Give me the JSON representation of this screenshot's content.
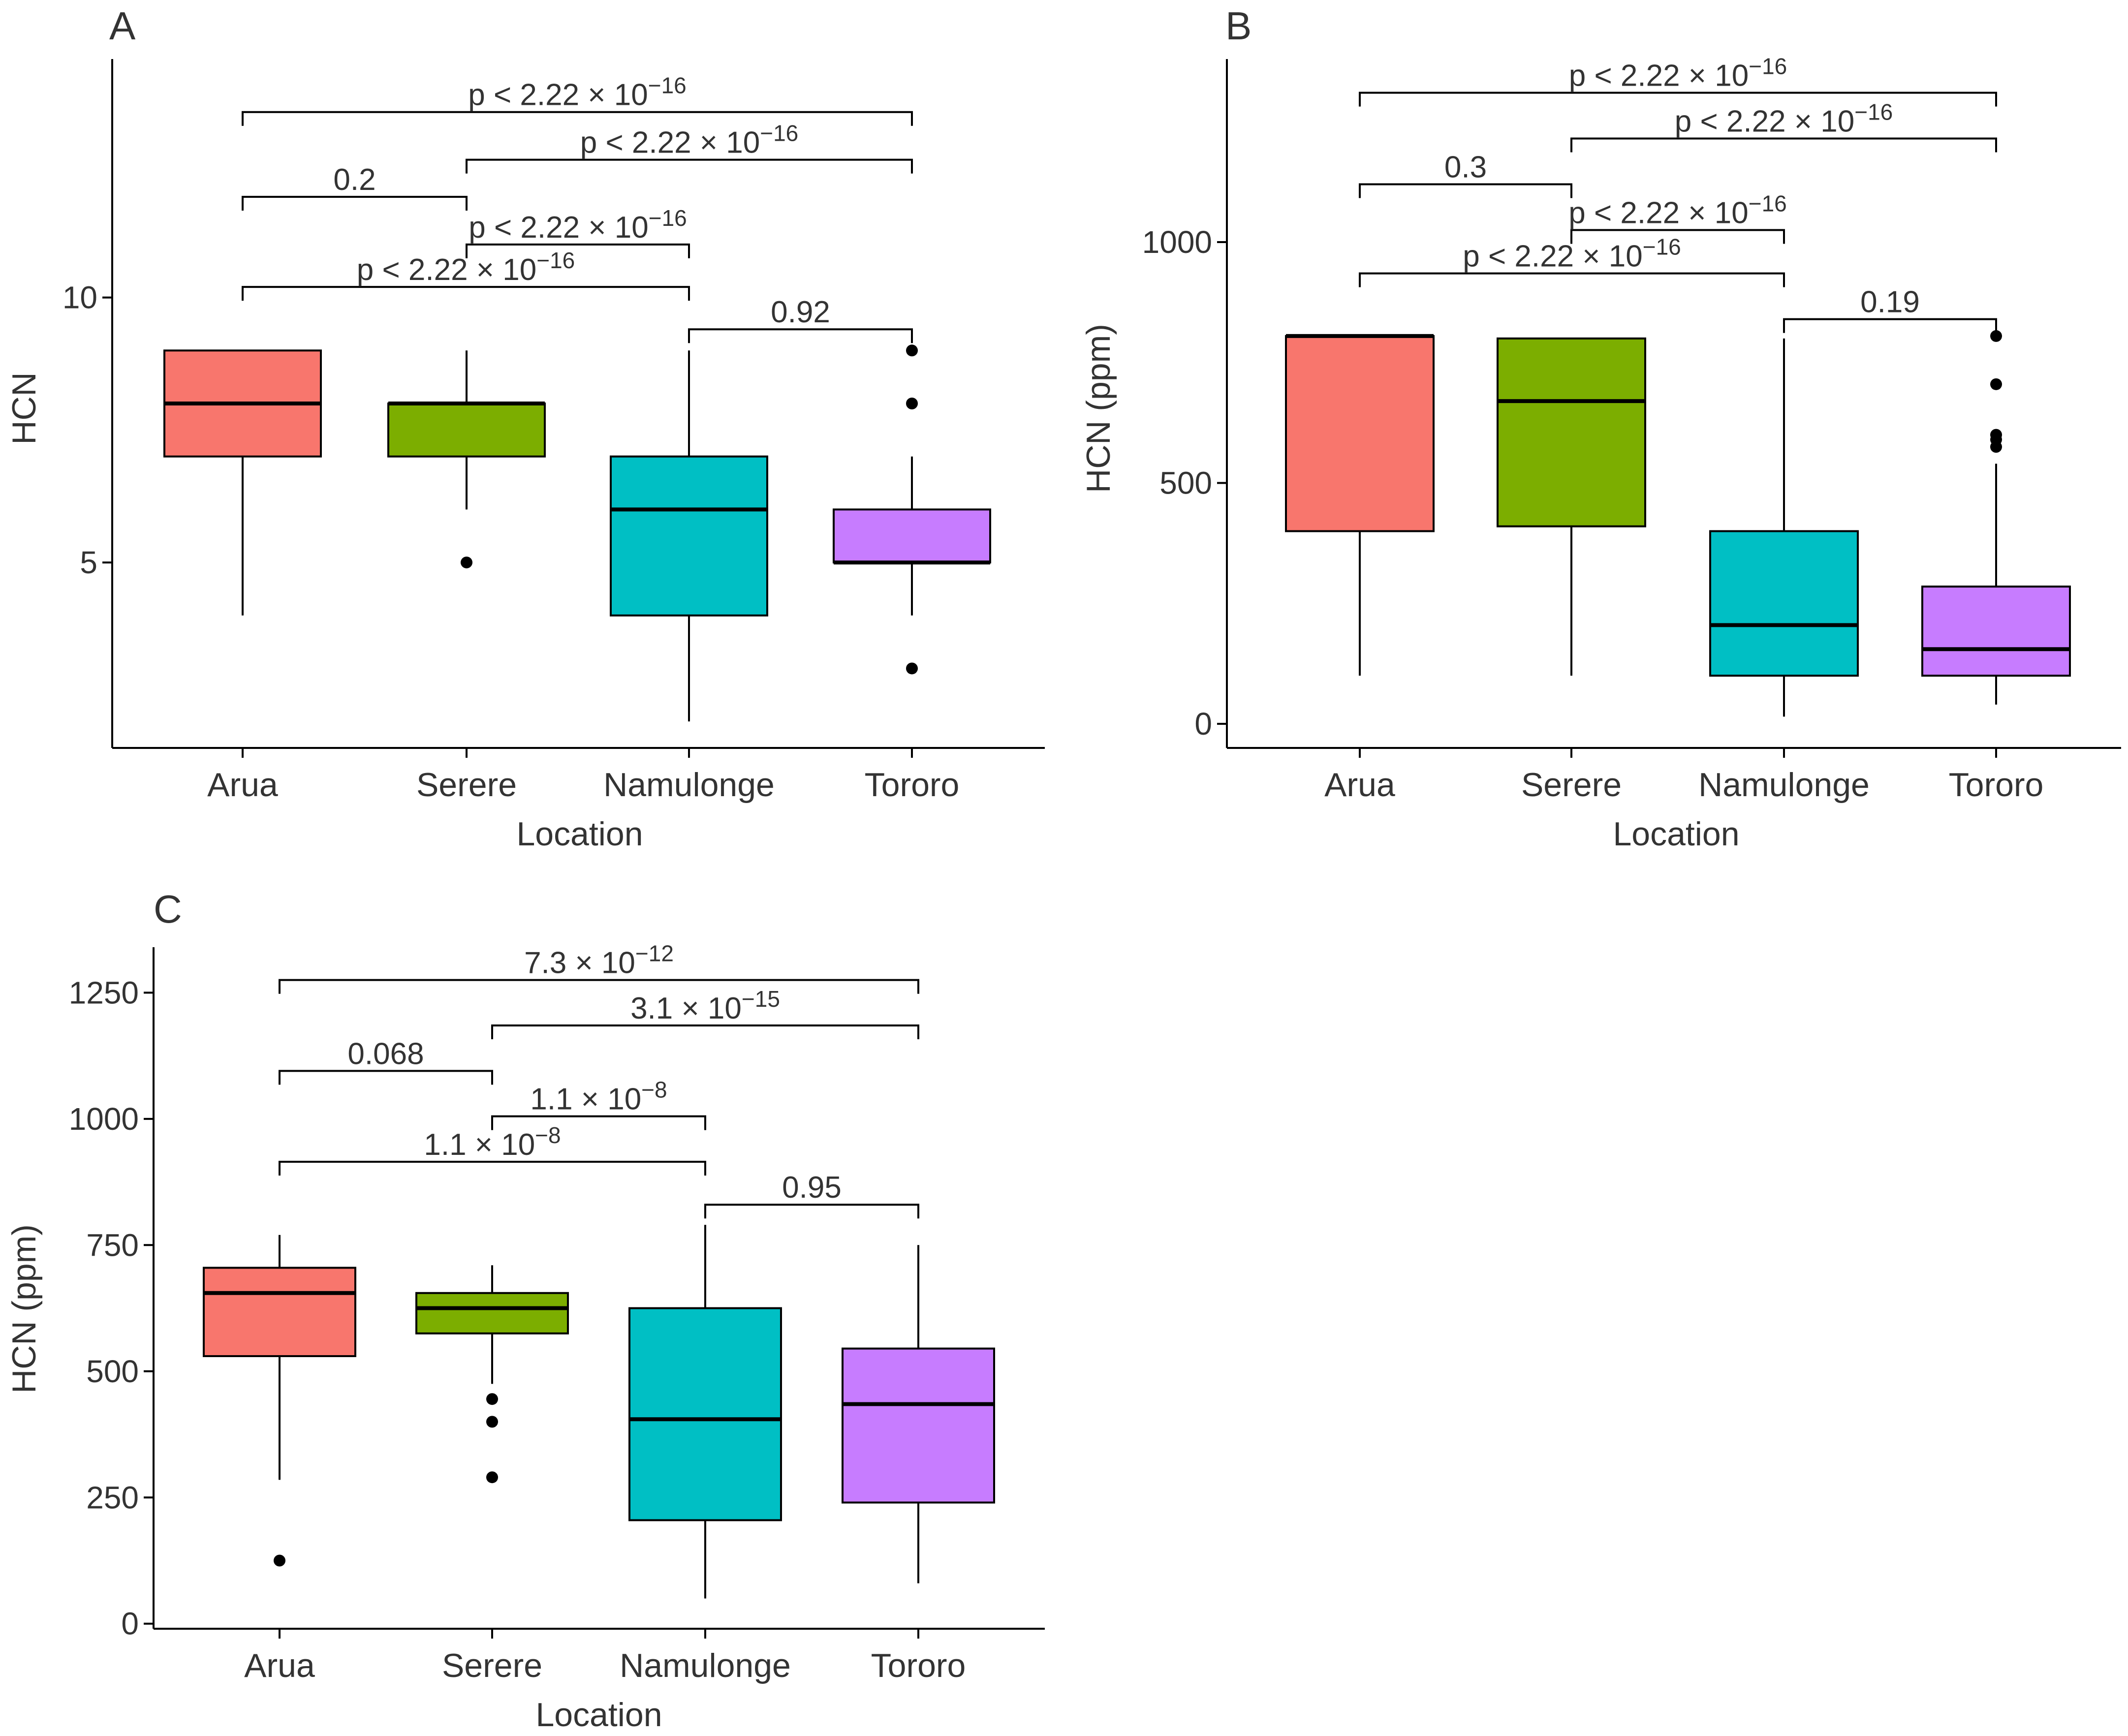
{
  "figure": {
    "panels": [
      "A",
      "B",
      "C"
    ]
  },
  "colors": {
    "Arua": "#F8766D",
    "Serere": "#7CAE00",
    "Namulonge": "#00BFC4",
    "Tororo": "#C77CFF",
    "line": "#000000",
    "text": "#333333"
  },
  "chart_data": [
    {
      "panel": "A",
      "type": "boxplot",
      "xlabel": "Location",
      "ylabel": "HCN",
      "categories": [
        "Arua",
        "Serere",
        "Namulonge",
        "Tororo"
      ],
      "ylim": [
        1.5,
        14.5
      ],
      "yticks": [
        5,
        10
      ],
      "ytick_labels": [
        "5",
        "10"
      ],
      "boxes": [
        {
          "name": "Arua",
          "lower_whisker": 4,
          "q1": 7,
          "median": 8,
          "q3": 9,
          "upper_whisker": 9,
          "outliers": []
        },
        {
          "name": "Serere",
          "lower_whisker": 6,
          "q1": 7,
          "median": 8,
          "q3": 8,
          "upper_whisker": 9,
          "outliers": [
            5
          ]
        },
        {
          "name": "Namulonge",
          "lower_whisker": 2,
          "q1": 4,
          "median": 6,
          "q3": 7,
          "upper_whisker": 9,
          "outliers": []
        },
        {
          "name": "Tororo",
          "lower_whisker": 4,
          "q1": 5,
          "median": 5,
          "q3": 6,
          "upper_whisker": 7,
          "outliers": [
            3,
            8,
            9
          ]
        }
      ],
      "comparisons": [
        {
          "from": 0,
          "to": 3,
          "level": 13.5,
          "label": "p < 2.22 × 10",
          "exp": "−16"
        },
        {
          "from": 1,
          "to": 3,
          "level": 12.6,
          "label": "p < 2.22 × 10",
          "exp": "−16"
        },
        {
          "from": 0,
          "to": 1,
          "level": 11.9,
          "label": "0.2",
          "exp": ""
        },
        {
          "from": 1,
          "to": 2,
          "level": 11.0,
          "label": "p < 2.22 × 10",
          "exp": "−16"
        },
        {
          "from": 0,
          "to": 2,
          "level": 10.2,
          "label": "p < 2.22 × 10",
          "exp": "−16"
        },
        {
          "from": 2,
          "to": 3,
          "level": 9.4,
          "label": "0.92",
          "exp": ""
        }
      ]
    },
    {
      "panel": "B",
      "type": "boxplot",
      "xlabel": "Location",
      "ylabel": "HCN (ppm)",
      "categories": [
        "Arua",
        "Serere",
        "Namulonge",
        "Tororo"
      ],
      "ylim": [
        -50,
        1380
      ],
      "yticks": [
        0,
        500,
        1000
      ],
      "ytick_labels": [
        "0",
        "500",
        "1000"
      ],
      "boxes": [
        {
          "name": "Arua",
          "lower_whisker": 100,
          "q1": 400,
          "median": 805,
          "q3": 805,
          "upper_whisker": 805,
          "outliers": []
        },
        {
          "name": "Serere",
          "lower_whisker": 100,
          "q1": 410,
          "median": 670,
          "q3": 800,
          "upper_whisker": 800,
          "outliers": []
        },
        {
          "name": "Namulonge",
          "lower_whisker": 15,
          "q1": 100,
          "median": 205,
          "q3": 400,
          "upper_whisker": 800,
          "outliers": []
        },
        {
          "name": "Tororo",
          "lower_whisker": 40,
          "q1": 100,
          "median": 155,
          "q3": 285,
          "upper_whisker": 540,
          "outliers": [
            575,
            590,
            600,
            705,
            805
          ]
        }
      ],
      "comparisons": [
        {
          "from": 0,
          "to": 3,
          "level": 1310,
          "label": "p < 2.22 × 10",
          "exp": "−16"
        },
        {
          "from": 1,
          "to": 3,
          "level": 1215,
          "label": "p < 2.22 × 10",
          "exp": "−16"
        },
        {
          "from": 0,
          "to": 1,
          "level": 1120,
          "label": "0.3",
          "exp": ""
        },
        {
          "from": 1,
          "to": 2,
          "level": 1025,
          "label": "p < 2.22 × 10",
          "exp": "−16"
        },
        {
          "from": 0,
          "to": 2,
          "level": 935,
          "label": "p < 2.22 × 10",
          "exp": "−16"
        },
        {
          "from": 2,
          "to": 3,
          "level": 840,
          "label": "0.19",
          "exp": ""
        }
      ]
    },
    {
      "panel": "C",
      "type": "boxplot",
      "xlabel": "Location",
      "ylabel": "HCN (ppm)",
      "categories": [
        "Arua",
        "Serere",
        "Namulonge",
        "Tororo"
      ],
      "ylim": [
        -10,
        1340
      ],
      "yticks": [
        0,
        250,
        500,
        750,
        1000,
        1250
      ],
      "ytick_labels": [
        "0",
        "250",
        "500",
        "750",
        "1000",
        "1250"
      ],
      "boxes": [
        {
          "name": "Arua",
          "lower_whisker": 285,
          "q1": 530,
          "median": 655,
          "q3": 705,
          "upper_whisker": 770,
          "outliers": [
            125
          ]
        },
        {
          "name": "Serere",
          "lower_whisker": 475,
          "q1": 575,
          "median": 625,
          "q3": 655,
          "upper_whisker": 710,
          "outliers": [
            290,
            400,
            445
          ]
        },
        {
          "name": "Namulonge",
          "lower_whisker": 50,
          "q1": 205,
          "median": 405,
          "q3": 625,
          "upper_whisker": 790,
          "outliers": []
        },
        {
          "name": "Tororo",
          "lower_whisker": 80,
          "q1": 240,
          "median": 435,
          "q3": 545,
          "upper_whisker": 750,
          "outliers": []
        }
      ],
      "comparisons": [
        {
          "from": 0,
          "to": 3,
          "level": 1275,
          "label": "7.3 × 10",
          "exp": "−12"
        },
        {
          "from": 1,
          "to": 3,
          "level": 1185,
          "label": "3.1 × 10",
          "exp": "−15"
        },
        {
          "from": 0,
          "to": 1,
          "level": 1095,
          "label": "0.068",
          "exp": ""
        },
        {
          "from": 1,
          "to": 2,
          "level": 1005,
          "label": "1.1 × 10",
          "exp": "−8"
        },
        {
          "from": 0,
          "to": 2,
          "level": 915,
          "label": "1.1 × 10",
          "exp": "−8"
        },
        {
          "from": 2,
          "to": 3,
          "level": 830,
          "label": "0.95",
          "exp": ""
        }
      ]
    }
  ]
}
